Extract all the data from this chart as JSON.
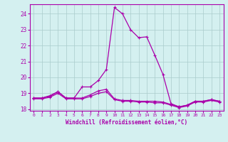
{
  "xlabel": "Windchill (Refroidissement éolien,°C)",
  "hours": [
    0,
    1,
    2,
    3,
    4,
    5,
    6,
    7,
    8,
    9,
    10,
    11,
    12,
    13,
    14,
    15,
    16,
    17,
    18,
    19,
    20,
    21,
    22,
    23
  ],
  "curve_main": [
    18.7,
    18.7,
    18.8,
    19.1,
    18.7,
    18.7,
    19.4,
    19.4,
    19.8,
    20.5,
    24.4,
    24.0,
    23.0,
    22.5,
    22.55,
    21.4,
    20.2,
    18.35,
    18.15,
    18.25,
    18.5,
    18.5,
    18.6,
    18.5
  ],
  "curve_flat1": [
    18.65,
    18.65,
    18.75,
    19.0,
    18.65,
    18.65,
    18.65,
    18.8,
    19.0,
    19.1,
    18.6,
    18.5,
    18.5,
    18.45,
    18.45,
    18.4,
    18.4,
    18.25,
    18.1,
    18.2,
    18.45,
    18.45,
    18.55,
    18.45
  ],
  "curve_flat2": [
    18.7,
    18.7,
    18.85,
    19.1,
    18.7,
    18.7,
    18.7,
    18.9,
    19.15,
    19.25,
    18.65,
    18.55,
    18.55,
    18.5,
    18.5,
    18.5,
    18.45,
    18.3,
    18.15,
    18.25,
    18.5,
    18.5,
    18.6,
    18.5
  ],
  "ylim": [
    17.9,
    24.6
  ],
  "yticks": [
    18,
    19,
    20,
    21,
    22,
    23,
    24
  ],
  "bg_color": "#d4f0f0",
  "grid_color": "#aacccc",
  "line_color": "#aa00aa"
}
